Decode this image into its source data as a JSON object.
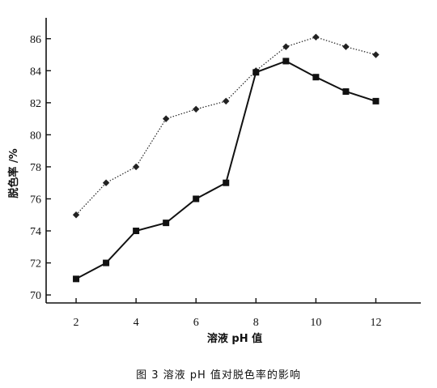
{
  "caption": "图 3   溶液 pH 值对脱色率的影响",
  "chart_data": {
    "type": "line",
    "title": "",
    "xlabel": "溶液 pH 值",
    "ylabel": "脱色率 /%",
    "xlim": [
      1,
      13.5
    ],
    "ylim": [
      69.5,
      87
    ],
    "xticks": [
      2,
      4,
      6,
      8,
      10,
      12
    ],
    "yticks": [
      70,
      72,
      74,
      76,
      78,
      80,
      82,
      84,
      86
    ],
    "grid": false,
    "legend": "none",
    "series": [
      {
        "marker": "diamond",
        "line_style": "dotted",
        "color": "#222222",
        "x": [
          2,
          3,
          4,
          5,
          6,
          7,
          8,
          9,
          10,
          11,
          12
        ],
        "y": [
          75.0,
          77.0,
          78.0,
          81.0,
          81.6,
          82.1,
          84.0,
          85.5,
          86.1,
          85.5,
          85.0
        ]
      },
      {
        "marker": "square",
        "line_style": "solid",
        "color": "#111111",
        "x": [
          2,
          3,
          4,
          5,
          6,
          7,
          8,
          9,
          10,
          11,
          12
        ],
        "y": [
          71.0,
          72.0,
          74.0,
          74.5,
          76.0,
          77.0,
          83.9,
          84.6,
          83.6,
          82.7,
          82.1
        ]
      }
    ]
  }
}
